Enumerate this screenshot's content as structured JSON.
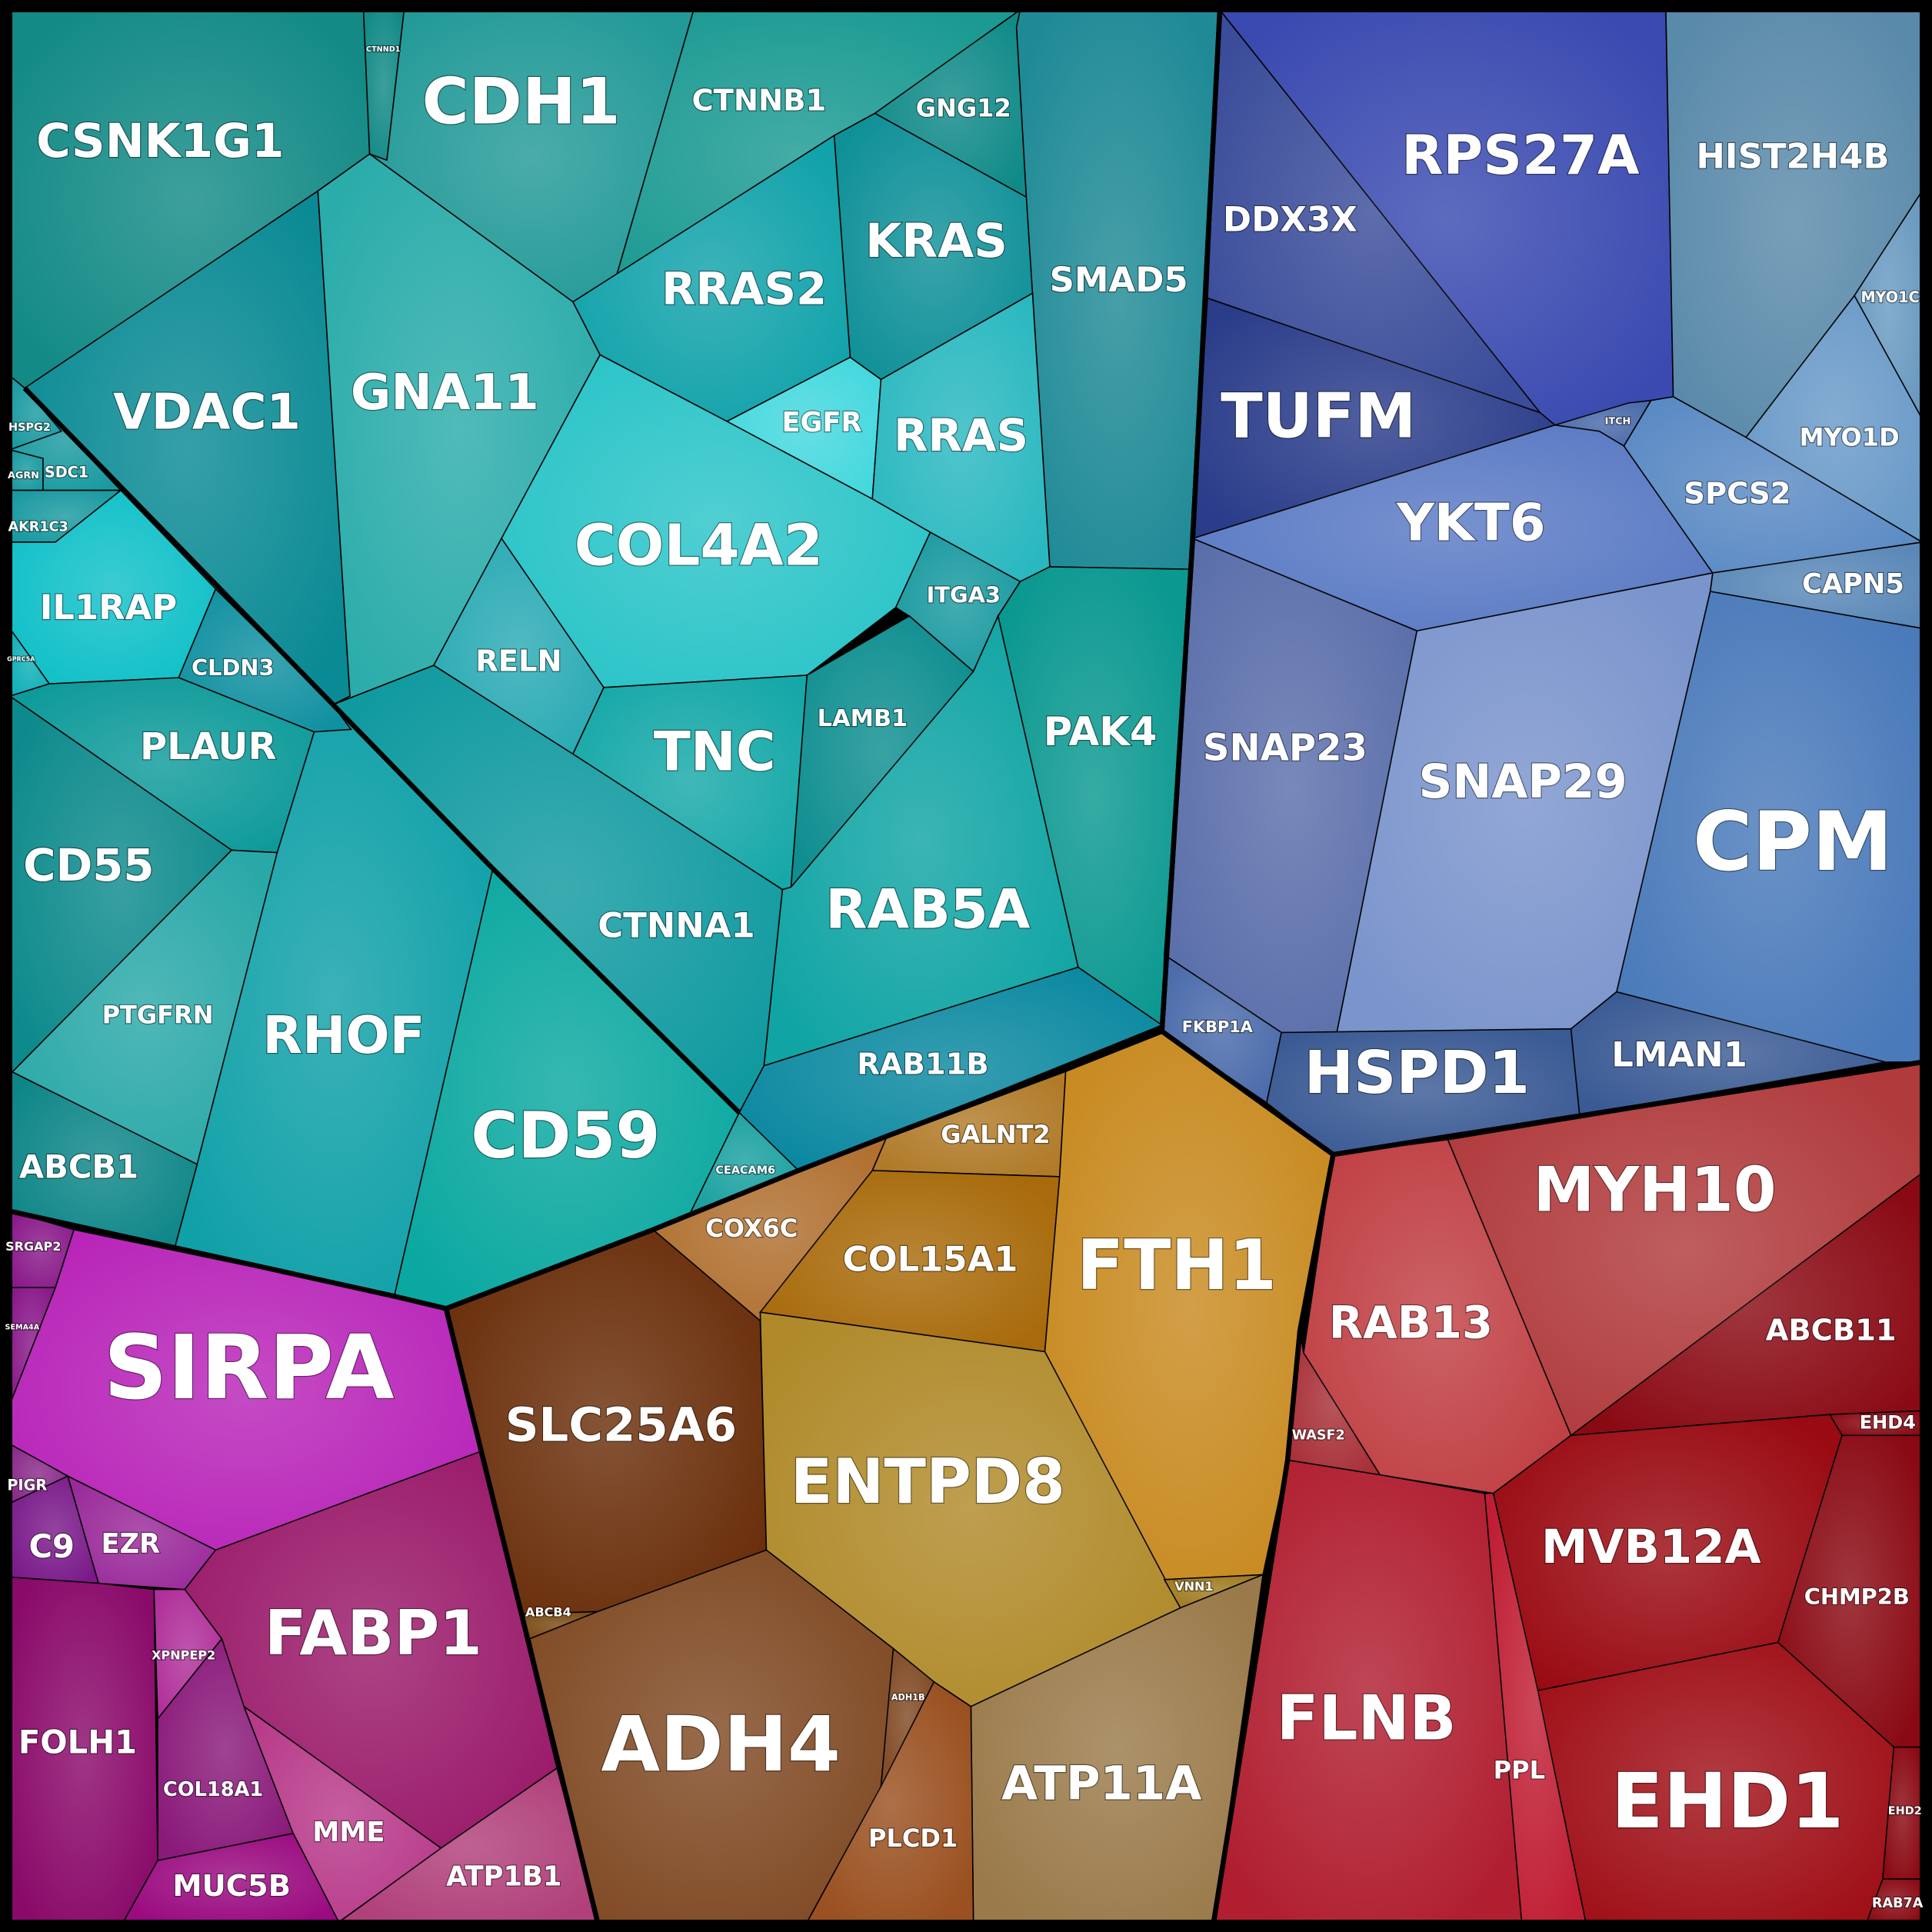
{
  "cells": [
    "CSNK1G1",
    "CTNND1",
    "CDH1",
    "CTNNB1",
    "GNG12",
    "KRAS",
    "SMAD5",
    "VDAC1",
    "GNA11",
    "RRAS2",
    "EGFR",
    "RRAS",
    "COL4A2",
    "ITGA3",
    "PAK4",
    "HSPG2",
    "AGRN",
    "SDC1",
    "AKR1C3",
    "IL1RAP",
    "GPRC5A",
    "CLDN3",
    "RELN",
    "TNC",
    "LAMB1",
    "RAB5A",
    "PLAUR",
    "CD55",
    "PTGFRN",
    "RHOF",
    "CTNNA1",
    "RAB11B",
    "ABCB1",
    "CD59",
    "CEACAM6",
    "DDX3X",
    "RPS27A",
    "TUFM",
    "HIST2H4B",
    "MYO1C",
    "MYO1D",
    "ITCH",
    "YKT6",
    "SPCS2",
    "CAPN5",
    "CPM",
    "SNAP23",
    "SNAP29",
    "FKBP1A",
    "HSPD1",
    "LMAN1",
    "MYH10",
    "RAB13",
    "WASF2",
    "ABCB11",
    "EHD4",
    "MVB12A",
    "CHMP2B",
    "EHD1",
    "EHD2",
    "RAB7A",
    "FLNB",
    "PPL",
    "COX6C",
    "GALNT2",
    "COL15A1",
    "FTH1",
    "SLC25A6",
    "ABCB4",
    "ENTPD8",
    "VNN1",
    "ATP11A",
    "ADH4",
    "ADH1B",
    "PLCD1",
    "SRGAP2",
    "SEMA4A",
    "SIRPA",
    "PIGR",
    "C9",
    "EZR",
    "FABP1",
    "FOLH1",
    "XPNPEP2",
    "COL18A1",
    "MME",
    "MUC5B",
    "ATP1B1"
  ]
}
